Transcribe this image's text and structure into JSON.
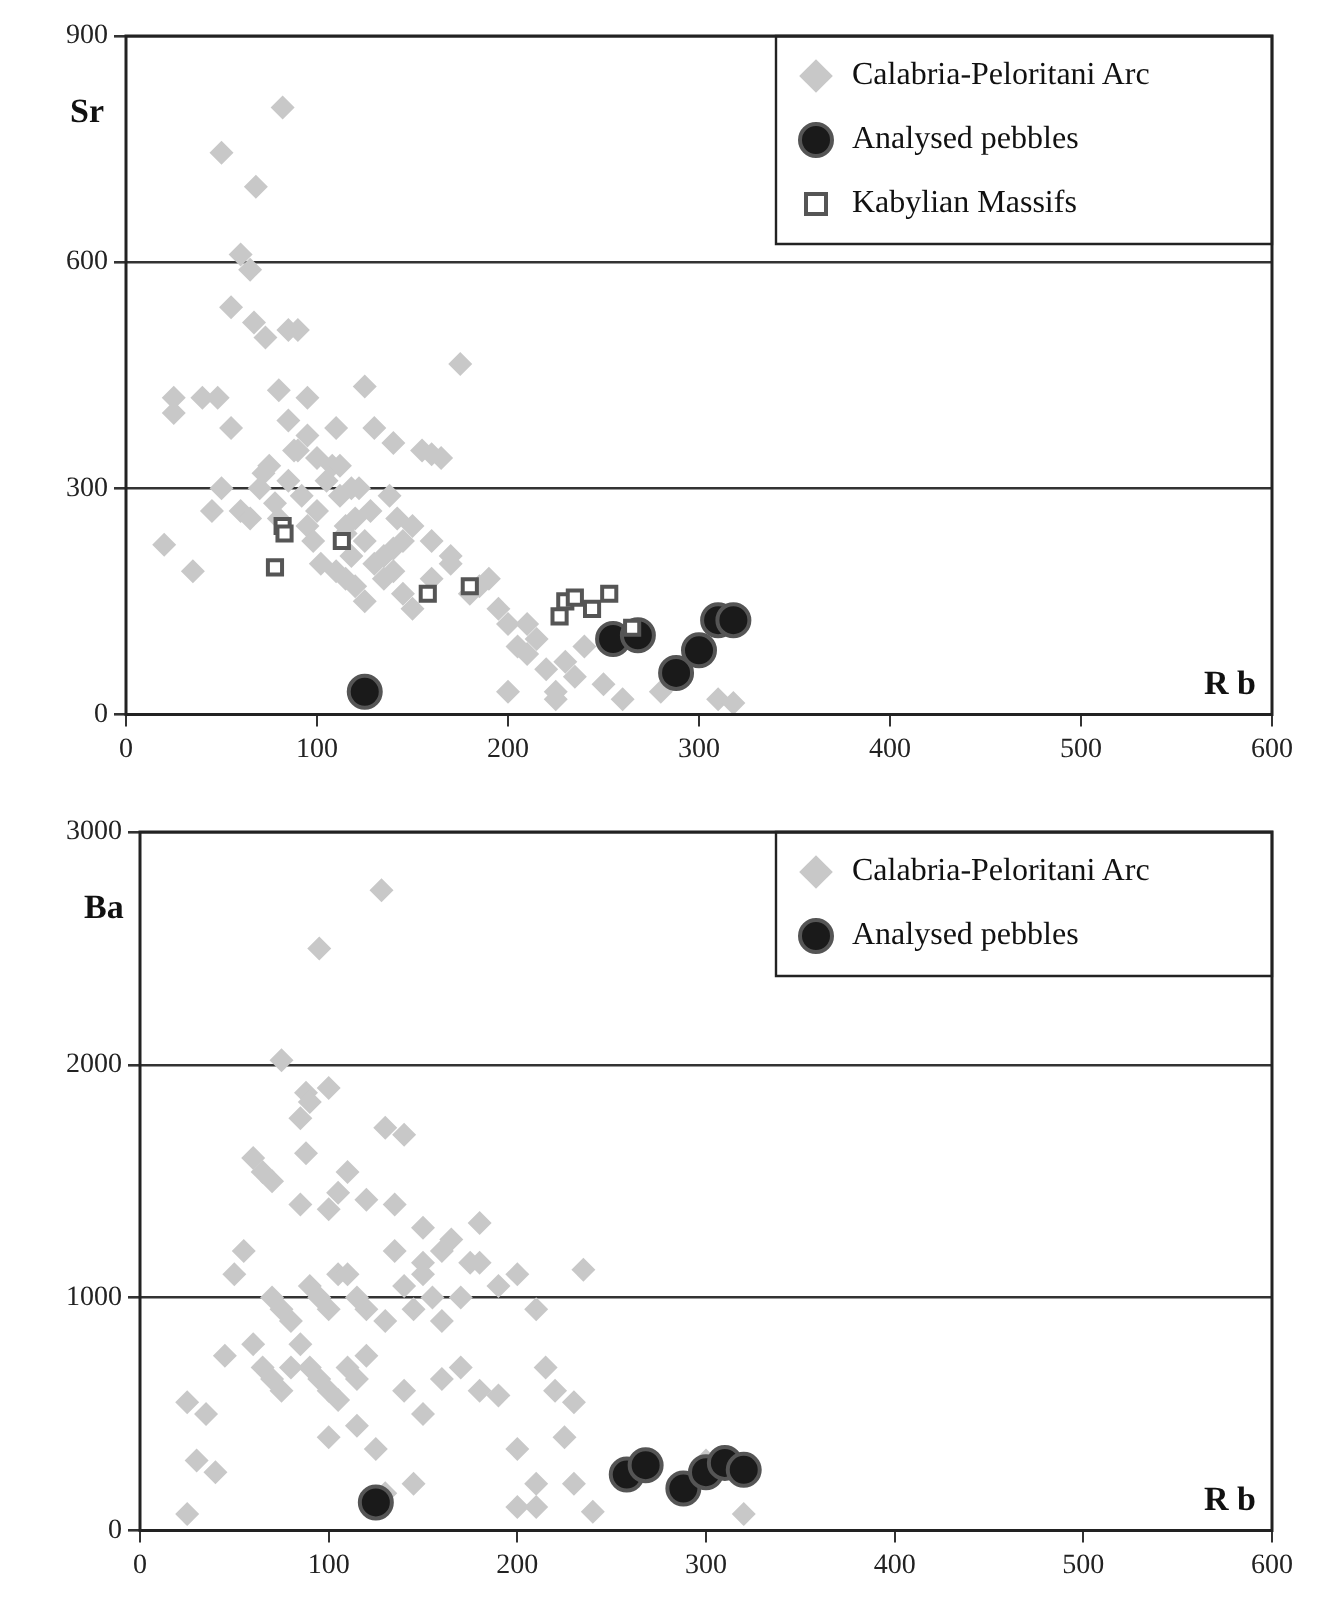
{
  "chart_data": [
    {
      "type": "scatter",
      "xlabel": "R b",
      "ylabel": "Sr",
      "xlim": [
        0,
        600
      ],
      "xticks": [
        0,
        100,
        200,
        300,
        400,
        500,
        600
      ],
      "ylim": [
        0,
        900
      ],
      "yticks": [
        0,
        300,
        600,
        900
      ],
      "grid": "y",
      "legend": "top right",
      "series": [
        {
          "name": "Calabria-Peloritani Arc",
          "color": "#c8c8c8",
          "marker": "diamond",
          "x": [
            82,
            50,
            68,
            60,
            65,
            55,
            67,
            73,
            85,
            90,
            25,
            25,
            40,
            80,
            95,
            125,
            175,
            110,
            130,
            140,
            155,
            160,
            165,
            20,
            35,
            50,
            45,
            70,
            75,
            78,
            85,
            88,
            92,
            95,
            100,
            105,
            108,
            112,
            115,
            118,
            120,
            122,
            128,
            135,
            138,
            142,
            145,
            150,
            60,
            65,
            72,
            80,
            98,
            102,
            110,
            115,
            120,
            125,
            130,
            135,
            140,
            145,
            150,
            160,
            170,
            180,
            185,
            190,
            195,
            200,
            205,
            210,
            215,
            220,
            225,
            230,
            240,
            250,
            260,
            115,
            125,
            140,
            160,
            170,
            200,
            210,
            225,
            235,
            280,
            310,
            318,
            90,
            95,
            100,
            55,
            48,
            85,
            112,
            118
          ],
          "values": [
            805,
            745,
            700,
            610,
            590,
            540,
            520,
            500,
            510,
            510,
            420,
            400,
            420,
            430,
            420,
            435,
            465,
            380,
            380,
            360,
            350,
            345,
            340,
            225,
            190,
            300,
            270,
            300,
            330,
            280,
            310,
            350,
            290,
            250,
            270,
            310,
            330,
            290,
            240,
            210,
            260,
            300,
            270,
            210,
            290,
            260,
            230,
            250,
            270,
            260,
            320,
            260,
            230,
            200,
            190,
            180,
            170,
            150,
            200,
            180,
            220,
            160,
            140,
            230,
            200,
            160,
            170,
            180,
            140,
            120,
            90,
            80,
            100,
            60,
            30,
            70,
            90,
            40,
            20,
            250,
            230,
            190,
            180,
            210,
            30,
            120,
            20,
            50,
            30,
            20,
            15,
            350,
            370,
            340,
            380,
            420,
            390,
            330,
            300
          ]
        },
        {
          "name": "Analysed pebbles",
          "color": "#1a1a1a",
          "marker": "circle",
          "x": [
            125,
            255,
            268,
            288,
            300,
            310,
            318
          ],
          "values": [
            30,
            100,
            105,
            55,
            85,
            125,
            125
          ]
        },
        {
          "name": "Kabylian Massifs",
          "color": "#555555",
          "marker": "square",
          "x": [
            78,
            82,
            83,
            113,
            158,
            180,
            227,
            230,
            235,
            244,
            253,
            265
          ],
          "values": [
            195,
            250,
            240,
            230,
            160,
            170,
            130,
            150,
            155,
            140,
            160,
            115
          ]
        }
      ]
    },
    {
      "type": "scatter",
      "xlabel": "R b",
      "ylabel": "Ba",
      "xlim": [
        0,
        600
      ],
      "xticks": [
        0,
        100,
        200,
        300,
        400,
        500,
        600
      ],
      "ylim": [
        0,
        3000
      ],
      "yticks": [
        0,
        1000,
        2000,
        3000
      ],
      "grid": "y",
      "legend": "top right",
      "series": [
        {
          "name": "Calabria-Peloritani Arc",
          "color": "#c8c8c8",
          "marker": "diamond",
          "x": [
            128,
            95,
            75,
            88,
            90,
            85,
            130,
            88,
            60,
            65,
            70,
            110,
            85,
            100,
            105,
            120,
            135,
            150,
            165,
            175,
            180,
            55,
            50,
            60,
            45,
            35,
            25,
            30,
            40,
            25,
            70,
            75,
            80,
            90,
            95,
            100,
            105,
            115,
            120,
            130,
            140,
            145,
            150,
            155,
            160,
            170,
            180,
            190,
            200,
            210,
            215,
            220,
            235,
            65,
            70,
            75,
            80,
            85,
            90,
            95,
            100,
            105,
            110,
            115,
            120,
            140,
            150,
            160,
            170,
            180,
            200,
            210,
            230,
            210,
            115,
            100,
            125,
            130,
            145,
            190,
            200,
            225,
            230,
            240,
            300,
            320,
            135,
            150,
            160,
            140,
            100,
            110
          ],
          "values": [
            2750,
            2500,
            2020,
            1880,
            1840,
            1770,
            1730,
            1620,
            1600,
            1540,
            1500,
            1540,
            1400,
            1380,
            1450,
            1420,
            1400,
            1300,
            1250,
            1150,
            1320,
            1200,
            1100,
            800,
            750,
            500,
            550,
            300,
            250,
            70,
            1000,
            950,
            900,
            1050,
            1000,
            950,
            1100,
            1000,
            950,
            900,
            1050,
            950,
            1100,
            1000,
            900,
            1000,
            1150,
            1050,
            1100,
            950,
            700,
            600,
            1120,
            700,
            650,
            600,
            700,
            800,
            700,
            650,
            600,
            560,
            700,
            650,
            750,
            600,
            500,
            650,
            700,
            600,
            350,
            200,
            550,
            100,
            450,
            400,
            350,
            160,
            200,
            580,
            100,
            400,
            200,
            80,
            300,
            70,
            1200,
            1150,
            1200,
            1700,
            1900,
            1100
          ]
        },
        {
          "name": "Analysed pebbles",
          "color": "#1a1a1a",
          "marker": "circle",
          "x": [
            125,
            258,
            268,
            288,
            300,
            310,
            320
          ],
          "values": [
            120,
            240,
            280,
            180,
            250,
            290,
            260
          ]
        }
      ]
    }
  ]
}
